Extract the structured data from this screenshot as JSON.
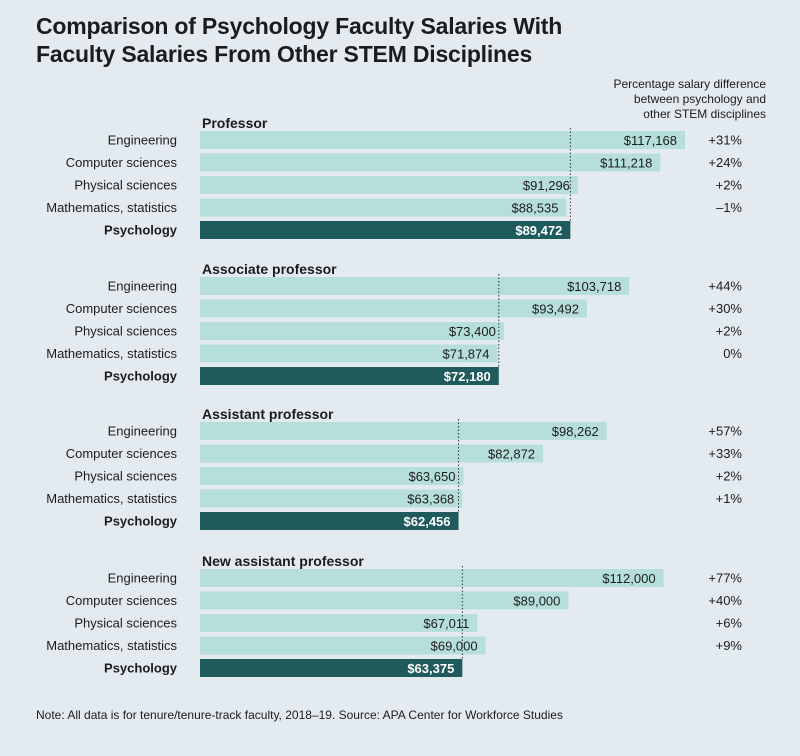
{
  "title_lines": [
    "Comparison of Psychology Faculty Salaries With",
    "Faculty Salaries From Other STEM Disciplines"
  ],
  "diff_header_lines": [
    "Percentage salary difference",
    "between psychology and",
    "other STEM disciplines"
  ],
  "note": "Note: All data is for tenure/tenure-track faculty, 2018–19. Source: APA Center for Workforce Studies",
  "colors": {
    "background": "#e4ebf0",
    "bar_light": "#b6dfdb",
    "bar_dark": "#1f5a5c",
    "text": "#1c1c1c"
  },
  "chart_data": {
    "type": "bar",
    "orientation": "horizontal",
    "value_unit": "USD",
    "title": "Comparison of Psychology Faculty Salaries With Faculty Salaries From Other STEM Disciplines",
    "diff_label": "Percentage salary difference between psychology and other STEM disciplines",
    "reference_line": "Psychology salary (dotted)",
    "groups": [
      {
        "name": "Professor",
        "rows": [
          {
            "category": "Engineering",
            "value": 117168,
            "label": "$117,168",
            "diff": "+31%"
          },
          {
            "category": "Computer sciences",
            "value": 111218,
            "label": "$111,218",
            "diff": "+24%"
          },
          {
            "category": "Physical sciences",
            "value": 91296,
            "label": "$91,296",
            "diff": "+2%"
          },
          {
            "category": "Mathematics, statistics",
            "value": 88535,
            "label": "$88,535",
            "diff": "–1%"
          },
          {
            "category": "Psychology",
            "value": 89472,
            "label": "$89,472",
            "diff": "",
            "highlight": true
          }
        ]
      },
      {
        "name": "Associate professor",
        "rows": [
          {
            "category": "Engineering",
            "value": 103718,
            "label": "$103,718",
            "diff": "+44%"
          },
          {
            "category": "Computer sciences",
            "value": 93492,
            "label": "$93,492",
            "diff": "+30%"
          },
          {
            "category": "Physical sciences",
            "value": 73400,
            "label": "$73,400",
            "diff": "+2%"
          },
          {
            "category": "Mathematics, statistics",
            "value": 71874,
            "label": "$71,874",
            "diff": "0%"
          },
          {
            "category": "Psychology",
            "value": 72180,
            "label": "$72,180",
            "diff": "",
            "highlight": true
          }
        ]
      },
      {
        "name": "Assistant professor",
        "rows": [
          {
            "category": "Engineering",
            "value": 98262,
            "label": "$98,262",
            "diff": "+57%"
          },
          {
            "category": "Computer sciences",
            "value": 82872,
            "label": "$82,872",
            "diff": "+33%"
          },
          {
            "category": "Physical sciences",
            "value": 63650,
            "label": "$63,650",
            "diff": "+2%"
          },
          {
            "category": "Mathematics, statistics",
            "value": 63368,
            "label": "$63,368",
            "diff": "+1%"
          },
          {
            "category": "Psychology",
            "value": 62456,
            "label": "$62,456",
            "diff": "",
            "highlight": true
          }
        ]
      },
      {
        "name": "New assistant professor",
        "rows": [
          {
            "category": "Engineering",
            "value": 112000,
            "label": "$112,000",
            "diff": "+77%"
          },
          {
            "category": "Computer sciences",
            "value": 89000,
            "label": "$89,000",
            "diff": "+40%"
          },
          {
            "category": "Physical sciences",
            "value": 67011,
            "label": "$67,011",
            "diff": "+6%"
          },
          {
            "category": "Mathematics, statistics",
            "value": 69000,
            "label": "$69,000",
            "diff": "+9%"
          },
          {
            "category": "Psychology",
            "value": 63375,
            "label": "$63,375",
            "diff": "",
            "highlight": true
          }
        ]
      }
    ]
  }
}
